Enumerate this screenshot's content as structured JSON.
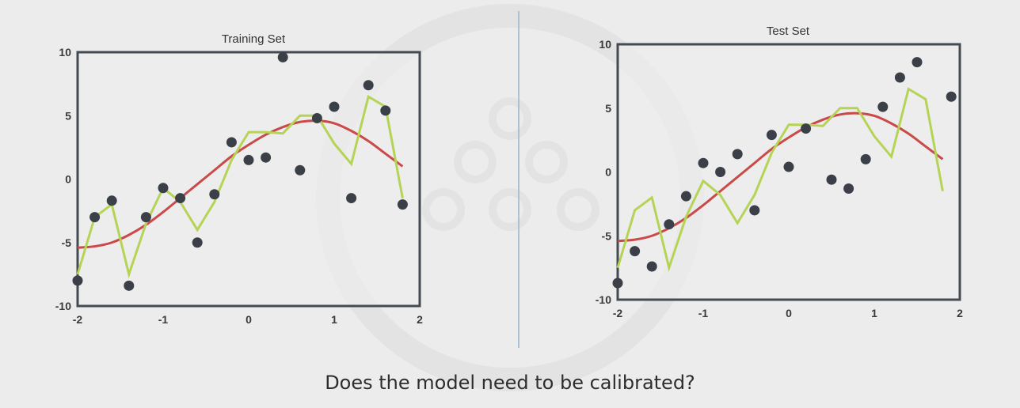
{
  "caption": "Does the model need to be calibrated?",
  "colors": {
    "points": "#3b3f48",
    "smooth_fit": "#c94a48",
    "overfit": "#b5d456",
    "frame": "#444a52",
    "divider": "#9cb3c9",
    "background": "#ececec",
    "plot_background": "#eeeeee"
  },
  "chart_data": [
    {
      "type": "scatter",
      "title": "Training Set",
      "xlim": [
        -2,
        2
      ],
      "ylim": [
        -10,
        10
      ],
      "x_ticks": [
        -2,
        -1,
        0,
        1,
        2
      ],
      "y_ticks": [
        -10,
        -5,
        0,
        5,
        10
      ],
      "points": [
        {
          "x": -2.0,
          "y": -8.0
        },
        {
          "x": -1.8,
          "y": -3.0
        },
        {
          "x": -1.6,
          "y": -1.7
        },
        {
          "x": -1.4,
          "y": -8.4
        },
        {
          "x": -1.2,
          "y": -3.0
        },
        {
          "x": -1.0,
          "y": -0.7
        },
        {
          "x": -0.8,
          "y": -1.5
        },
        {
          "x": -0.6,
          "y": -5.0
        },
        {
          "x": -0.4,
          "y": -1.2
        },
        {
          "x": -0.2,
          "y": 2.9
        },
        {
          "x": 0.0,
          "y": 1.5
        },
        {
          "x": 0.2,
          "y": 1.7
        },
        {
          "x": 0.4,
          "y": 9.6
        },
        {
          "x": 0.6,
          "y": 0.7
        },
        {
          "x": 0.8,
          "y": 4.8
        },
        {
          "x": 1.0,
          "y": 5.7
        },
        {
          "x": 1.2,
          "y": -1.5
        },
        {
          "x": 1.4,
          "y": 7.4
        },
        {
          "x": 1.6,
          "y": 5.4
        },
        {
          "x": 1.8,
          "y": -2.0
        }
      ],
      "smooth_fit": {
        "x": [
          -2.0,
          -1.8,
          -1.6,
          -1.4,
          -1.2,
          -1.0,
          -0.8,
          -0.6,
          -0.4,
          -0.2,
          0.0,
          0.2,
          0.4,
          0.6,
          0.8,
          1.0,
          1.2,
          1.4,
          1.6,
          1.8
        ],
        "y": [
          -5.4,
          -5.3,
          -5.0,
          -4.4,
          -3.6,
          -2.6,
          -1.5,
          -0.4,
          0.7,
          1.8,
          2.7,
          3.5,
          4.1,
          4.5,
          4.6,
          4.4,
          3.8,
          3.0,
          2.0,
          1.0
        ]
      },
      "overfit": {
        "x": [
          -2.0,
          -1.8,
          -1.6,
          -1.4,
          -1.2,
          -1.0,
          -0.8,
          -0.6,
          -0.4,
          -0.2,
          0.0,
          0.2,
          0.4,
          0.6,
          0.8,
          1.0,
          1.2,
          1.4,
          1.6,
          1.8
        ],
        "y": [
          -7.5,
          -3.0,
          -2.0,
          -7.5,
          -3.5,
          -0.7,
          -1.8,
          -4.0,
          -1.8,
          1.5,
          3.7,
          3.7,
          3.6,
          5.0,
          5.0,
          2.8,
          1.2,
          6.5,
          5.7,
          -1.5
        ]
      }
    },
    {
      "type": "scatter",
      "title": "Test Set",
      "xlim": [
        -2,
        2
      ],
      "ylim": [
        -10,
        10
      ],
      "x_ticks": [
        -2,
        -1,
        0,
        1,
        2
      ],
      "y_ticks": [
        -10,
        -5,
        0,
        5,
        10
      ],
      "points": [
        {
          "x": -2.0,
          "y": -8.7
        },
        {
          "x": -1.8,
          "y": -6.2
        },
        {
          "x": -1.6,
          "y": -7.4
        },
        {
          "x": -1.4,
          "y": -4.1
        },
        {
          "x": -1.2,
          "y": -1.9
        },
        {
          "x": -1.0,
          "y": 0.7
        },
        {
          "x": -0.8,
          "y": 0.0
        },
        {
          "x": -0.6,
          "y": 1.4
        },
        {
          "x": -0.4,
          "y": -3.0
        },
        {
          "x": -0.2,
          "y": 2.9
        },
        {
          "x": 0.0,
          "y": 0.4
        },
        {
          "x": 0.2,
          "y": 3.4
        },
        {
          "x": 0.5,
          "y": -0.6
        },
        {
          "x": 0.7,
          "y": -1.3
        },
        {
          "x": 0.9,
          "y": 1.0
        },
        {
          "x": 1.1,
          "y": 5.1
        },
        {
          "x": 1.3,
          "y": 7.4
        },
        {
          "x": 1.5,
          "y": 8.6
        },
        {
          "x": 1.9,
          "y": 5.9
        }
      ],
      "smooth_fit": {
        "x": [
          -2.0,
          -1.8,
          -1.6,
          -1.4,
          -1.2,
          -1.0,
          -0.8,
          -0.6,
          -0.4,
          -0.2,
          0.0,
          0.2,
          0.4,
          0.6,
          0.8,
          1.0,
          1.2,
          1.4,
          1.6,
          1.8
        ],
        "y": [
          -5.4,
          -5.3,
          -5.0,
          -4.4,
          -3.6,
          -2.6,
          -1.5,
          -0.4,
          0.7,
          1.8,
          2.7,
          3.5,
          4.1,
          4.5,
          4.6,
          4.4,
          3.8,
          3.0,
          2.0,
          1.0
        ]
      },
      "overfit": {
        "x": [
          -2.0,
          -1.8,
          -1.6,
          -1.4,
          -1.2,
          -1.0,
          -0.8,
          -0.6,
          -0.4,
          -0.2,
          0.0,
          0.2,
          0.4,
          0.6,
          0.8,
          1.0,
          1.2,
          1.4,
          1.6,
          1.8
        ],
        "y": [
          -7.5,
          -3.0,
          -2.0,
          -7.5,
          -3.5,
          -0.7,
          -1.8,
          -4.0,
          -1.8,
          1.5,
          3.7,
          3.7,
          3.6,
          5.0,
          5.0,
          2.8,
          1.2,
          6.5,
          5.7,
          -1.5
        ]
      }
    }
  ]
}
